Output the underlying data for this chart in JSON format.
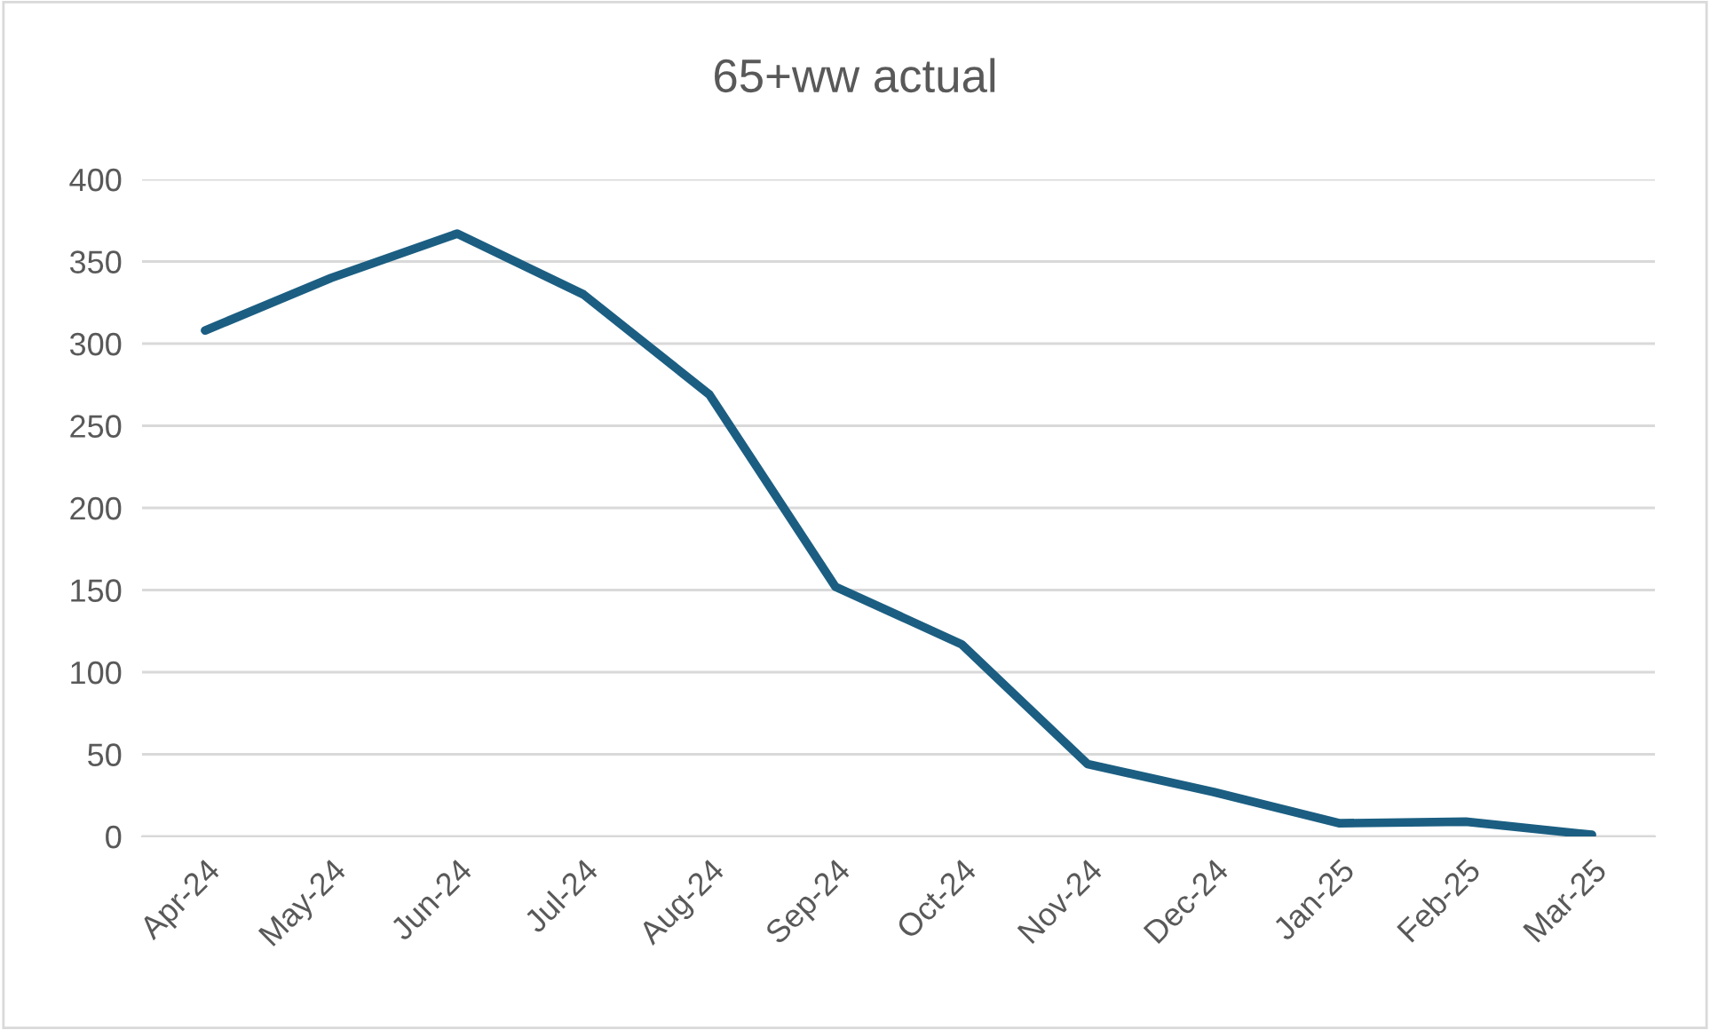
{
  "chart_data": {
    "type": "line",
    "title": "65+ww actual",
    "categories": [
      "Apr-24",
      "May-24",
      "Jun-24",
      "Jul-24",
      "Aug-24",
      "Sep-24",
      "Oct-24",
      "Nov-24",
      "Dec-24",
      "Jan-25",
      "Feb-25",
      "Mar-25"
    ],
    "series": [
      {
        "color": "#1b5e82",
        "values": [
          308,
          340,
          367,
          330,
          269,
          152,
          117,
          44,
          27,
          8,
          9,
          1
        ]
      }
    ],
    "ylim": [
      0,
      400
    ],
    "yticks": [
      0,
      50,
      100,
      150,
      200,
      250,
      300,
      350,
      400
    ],
    "grid": "y",
    "marker": "none",
    "line_style": "solid"
  }
}
